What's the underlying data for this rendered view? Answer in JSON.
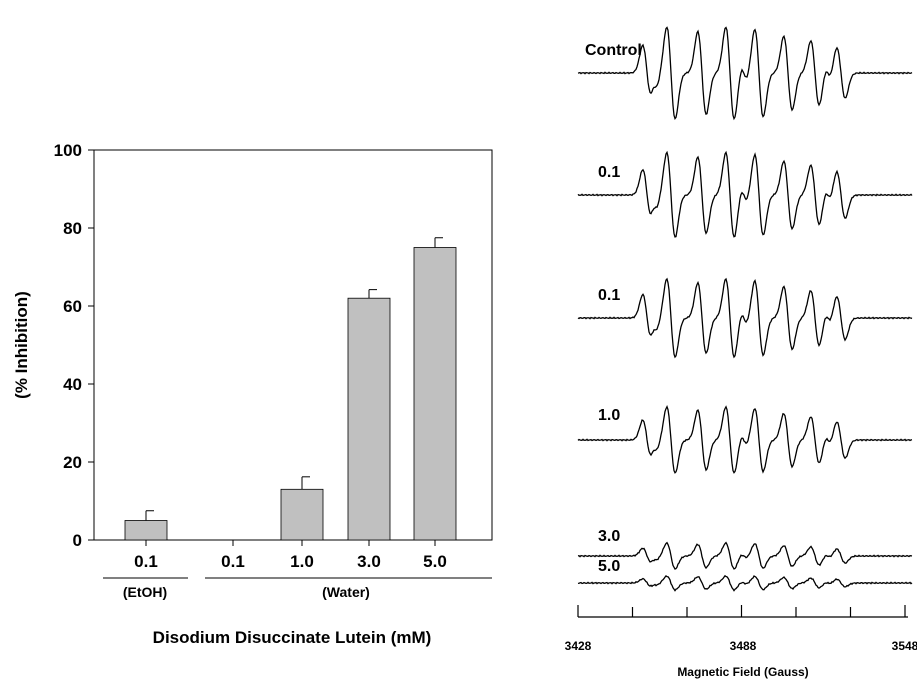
{
  "bar_chart": {
    "ylabel": "(% Inhibition)",
    "xlabel": "Disodium Disuccinate Lutein (mM)",
    "yticks": [
      "0",
      "20",
      "40",
      "60",
      "80",
      "100"
    ],
    "group_labels": [
      "(EtOH)",
      "(Water)"
    ]
  },
  "esr": {
    "trace_labels": [
      "Control",
      "0.1",
      "0.1",
      "1.0",
      "3.0",
      "5.0"
    ],
    "axis_ticks": [
      "3428",
      "3488",
      "3548"
    ],
    "axis_label": "Magnetic Field (Gauss)"
  },
  "chart_data": [
    {
      "type": "bar",
      "categories": [
        "0.1",
        "0.1",
        "1.0",
        "3.0",
        "5.0"
      ],
      "category_groups": [
        "(EtOH)",
        "(Water)",
        "(Water)",
        "(Water)",
        "(Water)"
      ],
      "series": [
        {
          "values": [
            5,
            0,
            13,
            62,
            75
          ],
          "errors": [
            2.5,
            0,
            3.2,
            2.2,
            2.5
          ]
        }
      ],
      "title": "",
      "xlabel": "Disodium Disuccinate Lutein (mM)",
      "ylabel": "(% Inhibition)",
      "ylim": [
        0,
        100
      ],
      "grid": false,
      "bar_color": "#c0c0c0"
    },
    {
      "type": "line",
      "title": "",
      "xlabel": "Magnetic Field (Gauss)",
      "xlim": [
        3428,
        3548
      ],
      "xticks": [
        3428,
        3488,
        3548
      ],
      "series_labels": [
        "Control",
        "0.1",
        "0.1",
        "1.0",
        "3.0",
        "5.0"
      ],
      "relative_amplitude": [
        1.0,
        0.92,
        0.85,
        0.72,
        0.28,
        0.15
      ],
      "line_color": "#000000"
    }
  ]
}
